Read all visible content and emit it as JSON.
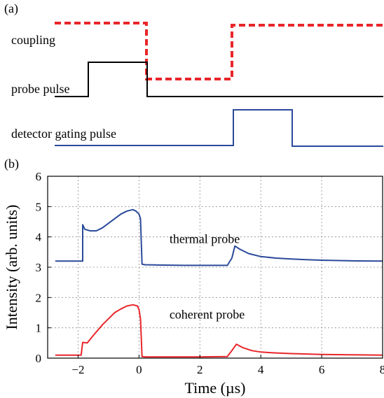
{
  "panel_a": {
    "label": "(a)",
    "signals": [
      {
        "name": "coupling",
        "label": "coupling",
        "color": "#e8262a",
        "style": "dashed",
        "levels": [
          "high",
          "low",
          "high"
        ],
        "edges_us": [
          0.2,
          3.0
        ]
      },
      {
        "name": "probe pulse",
        "label": "probe pulse",
        "color": "#000000",
        "style": "solid",
        "levels": [
          "low",
          "high",
          "low"
        ],
        "edges_us": [
          -1.8,
          0.2
        ]
      },
      {
        "name": "detector gating pulse",
        "label": "detector gating pulse",
        "color": "#2b4a9a",
        "style": "solid",
        "levels": [
          "low",
          "high",
          "low"
        ],
        "edges_us": [
          3.1,
          5.1
        ]
      }
    ]
  },
  "panel_b": {
    "label": "(b)"
  },
  "chart_data": {
    "type": "line",
    "xlabel": "Time (µs)",
    "ylabel": "Intensity (arb. units)",
    "xlim": [
      -3,
      8
    ],
    "ylim": [
      0,
      6
    ],
    "xticks": [
      -2,
      0,
      2,
      4,
      6,
      8
    ],
    "xtick_labels": [
      "−2",
      "0",
      "2",
      "4",
      "6",
      "8"
    ],
    "yticks": [
      0,
      1,
      2,
      3,
      4,
      5,
      6
    ],
    "ytick_labels": [
      "0",
      "1",
      "2",
      "3",
      "4",
      "5",
      "6"
    ],
    "grid": true,
    "series": [
      {
        "name": "thermal probe",
        "color": "#2b4a9a",
        "x": [
          -2.75,
          -1.85,
          -1.85,
          -1.78,
          -1.6,
          -1.4,
          -1.2,
          -1.0,
          -0.8,
          -0.6,
          -0.4,
          -0.2,
          -0.1,
          0.0,
          0.05,
          0.1,
          0.2,
          0.8,
          1.5,
          2.2,
          2.9,
          3.05,
          3.15,
          3.3,
          3.6,
          4.0,
          4.5,
          5.0,
          5.5,
          6.0,
          7.0,
          8.0
        ],
        "y": [
          3.2,
          3.2,
          4.4,
          4.25,
          4.2,
          4.2,
          4.3,
          4.45,
          4.6,
          4.75,
          4.85,
          4.9,
          4.85,
          4.75,
          4.6,
          3.1,
          3.08,
          3.07,
          3.06,
          3.06,
          3.06,
          3.3,
          3.7,
          3.6,
          3.45,
          3.35,
          3.3,
          3.27,
          3.25,
          3.23,
          3.21,
          3.2
        ]
      },
      {
        "name": "coherent probe",
        "color": "#e8262a",
        "x": [
          -2.75,
          -1.9,
          -1.85,
          -1.7,
          -1.5,
          -1.2,
          -1.0,
          -0.8,
          -0.6,
          -0.4,
          -0.2,
          -0.05,
          0.0,
          0.05,
          0.1,
          0.2,
          1.0,
          2.0,
          2.9,
          3.05,
          3.2,
          3.4,
          3.7,
          4.0,
          4.5,
          5.0,
          6.0,
          7.0,
          8.0
        ],
        "y": [
          0.1,
          0.1,
          0.52,
          0.5,
          0.75,
          1.1,
          1.3,
          1.5,
          1.62,
          1.72,
          1.76,
          1.72,
          1.6,
          1.3,
          0.05,
          0.04,
          0.04,
          0.04,
          0.05,
          0.25,
          0.46,
          0.35,
          0.25,
          0.2,
          0.17,
          0.15,
          0.12,
          0.11,
          0.1
        ]
      }
    ],
    "annotations": [
      {
        "text": "thermal probe",
        "x": 1.0,
        "y": 3.8
      },
      {
        "text": "coherent probe",
        "x": 1.0,
        "y": 1.3
      }
    ]
  }
}
